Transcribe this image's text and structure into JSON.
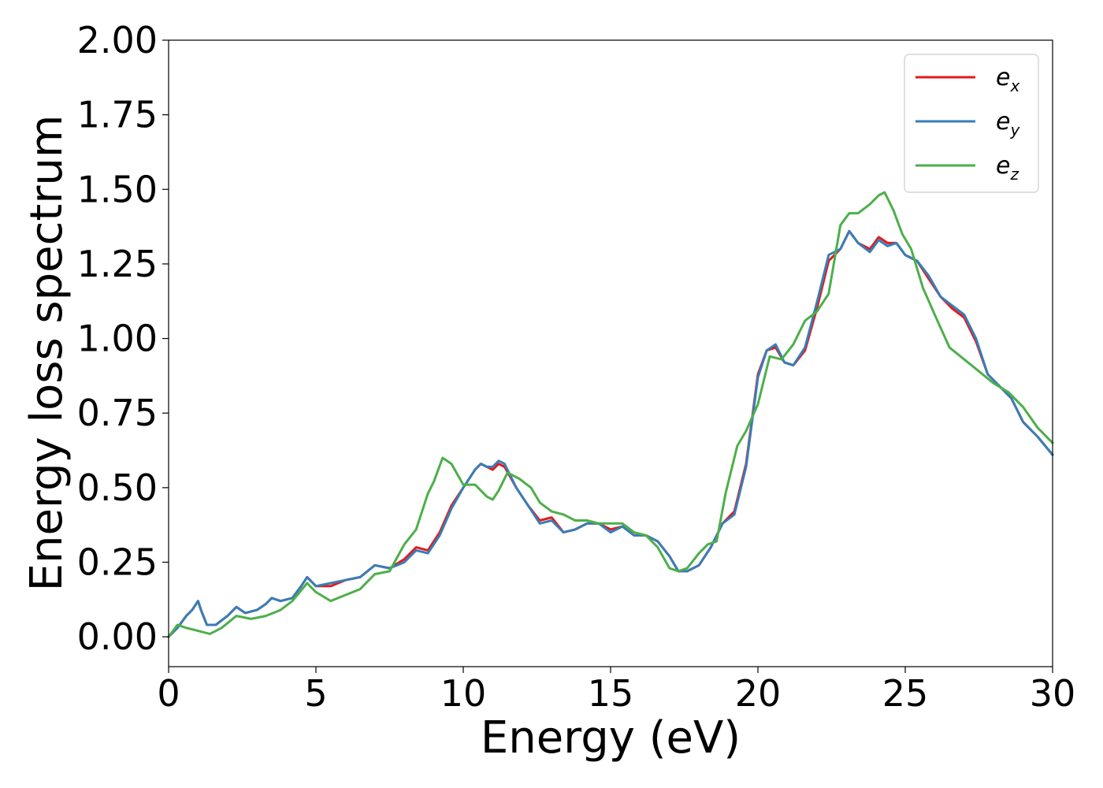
{
  "chart_data": {
    "type": "line",
    "xlabel": "Energy (eV)",
    "ylabel": "Energy loss spectrum",
    "xlim": [
      0,
      30
    ],
    "ylim": [
      -0.1,
      2.0
    ],
    "xticks": [
      "0",
      "5",
      "10",
      "15",
      "20",
      "25",
      "30"
    ],
    "yticks": [
      "0.00",
      "0.25",
      "0.50",
      "0.75",
      "1.00",
      "1.25",
      "1.50",
      "1.75",
      "2.00"
    ],
    "grid": false,
    "legend_position": "top-right",
    "series": [
      {
        "name": "e",
        "subscript": "x",
        "color": "#e41a1c",
        "x": [
          0,
          0.3,
          0.6,
          0.8,
          1.0,
          1.1,
          1.3,
          1.6,
          2.0,
          2.3,
          2.6,
          3.0,
          3.3,
          3.5,
          3.8,
          4.2,
          4.5,
          4.7,
          5.0,
          5.5,
          6.0,
          6.5,
          7.0,
          7.5,
          8.0,
          8.4,
          8.8,
          9.2,
          9.6,
          10.0,
          10.4,
          10.6,
          10.8,
          11.0,
          11.2,
          11.4,
          11.8,
          12.2,
          12.6,
          13.0,
          13.4,
          13.8,
          14.2,
          14.6,
          15.0,
          15.4,
          15.8,
          16.2,
          16.6,
          17.0,
          17.3,
          17.6,
          18.0,
          18.4,
          18.8,
          19.2,
          19.6,
          20.0,
          20.3,
          20.6,
          20.9,
          21.2,
          21.6,
          22.0,
          22.4,
          22.8,
          23.1,
          23.4,
          23.8,
          24.1,
          24.4,
          24.7,
          25.0,
          25.4,
          25.8,
          26.2,
          26.6,
          27.0,
          27.4,
          27.8,
          28.2,
          28.6,
          29.0,
          29.5,
          30.0
        ],
        "y": [
          0.0,
          0.03,
          0.07,
          0.09,
          0.12,
          0.09,
          0.04,
          0.04,
          0.07,
          0.1,
          0.08,
          0.09,
          0.11,
          0.13,
          0.12,
          0.13,
          0.17,
          0.2,
          0.17,
          0.17,
          0.19,
          0.2,
          0.24,
          0.23,
          0.26,
          0.3,
          0.29,
          0.35,
          0.44,
          0.5,
          0.56,
          0.58,
          0.57,
          0.56,
          0.58,
          0.57,
          0.5,
          0.44,
          0.39,
          0.4,
          0.35,
          0.36,
          0.38,
          0.38,
          0.36,
          0.37,
          0.34,
          0.34,
          0.32,
          0.27,
          0.22,
          0.22,
          0.24,
          0.3,
          0.38,
          0.42,
          0.58,
          0.88,
          0.96,
          0.97,
          0.92,
          0.91,
          0.96,
          1.1,
          1.26,
          1.3,
          1.36,
          1.32,
          1.3,
          1.34,
          1.32,
          1.32,
          1.28,
          1.26,
          1.2,
          1.14,
          1.1,
          1.07,
          0.99,
          0.88,
          0.84,
          0.8,
          0.72,
          0.67,
          0.61
        ]
      },
      {
        "name": "e",
        "subscript": "y",
        "color": "#377eb8",
        "x": [
          0,
          0.3,
          0.6,
          0.8,
          1.0,
          1.1,
          1.3,
          1.6,
          2.0,
          2.3,
          2.6,
          3.0,
          3.3,
          3.5,
          3.8,
          4.2,
          4.5,
          4.7,
          5.0,
          5.5,
          6.0,
          6.5,
          7.0,
          7.5,
          8.0,
          8.4,
          8.8,
          9.2,
          9.6,
          10.0,
          10.4,
          10.6,
          10.8,
          11.0,
          11.2,
          11.4,
          11.8,
          12.2,
          12.6,
          13.0,
          13.4,
          13.8,
          14.2,
          14.6,
          15.0,
          15.4,
          15.8,
          16.2,
          16.6,
          17.0,
          17.3,
          17.6,
          18.0,
          18.4,
          18.8,
          19.2,
          19.6,
          20.0,
          20.3,
          20.6,
          20.9,
          21.2,
          21.6,
          22.0,
          22.4,
          22.8,
          23.1,
          23.4,
          23.8,
          24.1,
          24.4,
          24.7,
          25.0,
          25.4,
          25.8,
          26.2,
          26.6,
          27.0,
          27.4,
          27.8,
          28.2,
          28.6,
          29.0,
          29.5,
          30.0
        ],
        "y": [
          0.0,
          0.03,
          0.07,
          0.09,
          0.12,
          0.09,
          0.04,
          0.04,
          0.07,
          0.1,
          0.08,
          0.09,
          0.11,
          0.13,
          0.12,
          0.13,
          0.17,
          0.2,
          0.17,
          0.18,
          0.19,
          0.2,
          0.24,
          0.23,
          0.25,
          0.29,
          0.28,
          0.34,
          0.43,
          0.5,
          0.56,
          0.58,
          0.57,
          0.57,
          0.59,
          0.58,
          0.5,
          0.44,
          0.38,
          0.39,
          0.35,
          0.36,
          0.38,
          0.38,
          0.35,
          0.37,
          0.34,
          0.34,
          0.32,
          0.27,
          0.22,
          0.22,
          0.24,
          0.3,
          0.38,
          0.41,
          0.57,
          0.87,
          0.96,
          0.98,
          0.92,
          0.91,
          0.97,
          1.12,
          1.28,
          1.3,
          1.36,
          1.32,
          1.29,
          1.33,
          1.31,
          1.32,
          1.28,
          1.26,
          1.21,
          1.14,
          1.11,
          1.08,
          1.0,
          0.88,
          0.84,
          0.8,
          0.72,
          0.67,
          0.61
        ]
      },
      {
        "name": "e",
        "subscript": "z",
        "color": "#4daf4a",
        "x": [
          0,
          0.3,
          0.6,
          1.0,
          1.4,
          1.8,
          2.3,
          2.8,
          3.3,
          3.8,
          4.2,
          4.7,
          5.0,
          5.5,
          6.0,
          6.5,
          7.0,
          7.5,
          8.0,
          8.4,
          8.8,
          9.0,
          9.3,
          9.6,
          10.0,
          10.4,
          10.8,
          11.0,
          11.2,
          11.5,
          11.9,
          12.3,
          12.6,
          13.0,
          13.4,
          13.8,
          14.2,
          14.6,
          15.0,
          15.4,
          15.8,
          16.2,
          16.6,
          17.0,
          17.3,
          17.6,
          18.0,
          18.3,
          18.6,
          18.9,
          19.3,
          19.6,
          20.0,
          20.4,
          20.8,
          21.2,
          21.6,
          22.0,
          22.4,
          22.8,
          23.1,
          23.4,
          23.8,
          24.1,
          24.3,
          24.6,
          24.9,
          25.2,
          25.6,
          26.0,
          26.5,
          27.0,
          27.5,
          28.0,
          28.5,
          29.0,
          29.5,
          30.0
        ],
        "y": [
          0.0,
          0.04,
          0.03,
          0.02,
          0.01,
          0.03,
          0.07,
          0.06,
          0.07,
          0.09,
          0.12,
          0.18,
          0.15,
          0.12,
          0.14,
          0.16,
          0.21,
          0.22,
          0.31,
          0.36,
          0.48,
          0.52,
          0.6,
          0.58,
          0.51,
          0.51,
          0.47,
          0.46,
          0.49,
          0.55,
          0.53,
          0.5,
          0.45,
          0.42,
          0.41,
          0.39,
          0.39,
          0.38,
          0.38,
          0.38,
          0.35,
          0.34,
          0.3,
          0.23,
          0.22,
          0.23,
          0.28,
          0.31,
          0.32,
          0.48,
          0.64,
          0.69,
          0.78,
          0.94,
          0.93,
          0.98,
          1.06,
          1.09,
          1.15,
          1.38,
          1.42,
          1.42,
          1.45,
          1.48,
          1.49,
          1.43,
          1.35,
          1.3,
          1.17,
          1.08,
          0.97,
          0.93,
          0.89,
          0.85,
          0.82,
          0.77,
          0.7,
          0.65
        ]
      }
    ]
  }
}
